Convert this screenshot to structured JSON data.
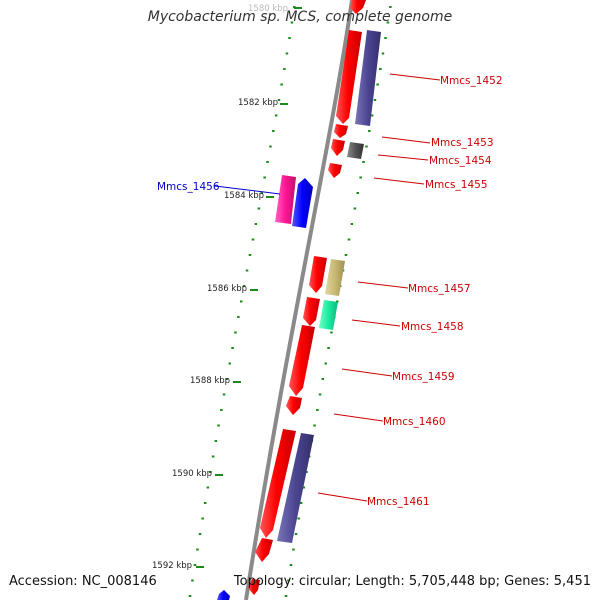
{
  "title": "Mycobacterium sp. MCS, complete genome",
  "accession_text": "Accession: NC_008146",
  "summary_text": "Topology: circular; Length: 5,705,448 bp; Genes: 5,451",
  "colors": {
    "backbone": "#8a8a8a",
    "ticks": "#1a8a1a",
    "label_red": "#cc0000",
    "label_blue": "#0000cc"
  },
  "kbp_labels": [
    "1580 kbp",
    "1582 kbp",
    "1584 kbp",
    "1586 kbp",
    "1588 kbp",
    "1590 kbp",
    "1592 kbp"
  ],
  "genes": [
    {
      "id": "Mmcs_1452"
    },
    {
      "id": "Mmcs_1453"
    },
    {
      "id": "Mmcs_1454"
    },
    {
      "id": "Mmcs_1455"
    },
    {
      "id": "Mmcs_1456"
    },
    {
      "id": "Mmcs_1457"
    },
    {
      "id": "Mmcs_1458"
    },
    {
      "id": "Mmcs_1459"
    },
    {
      "id": "Mmcs_1460"
    },
    {
      "id": "Mmcs_1461"
    }
  ]
}
